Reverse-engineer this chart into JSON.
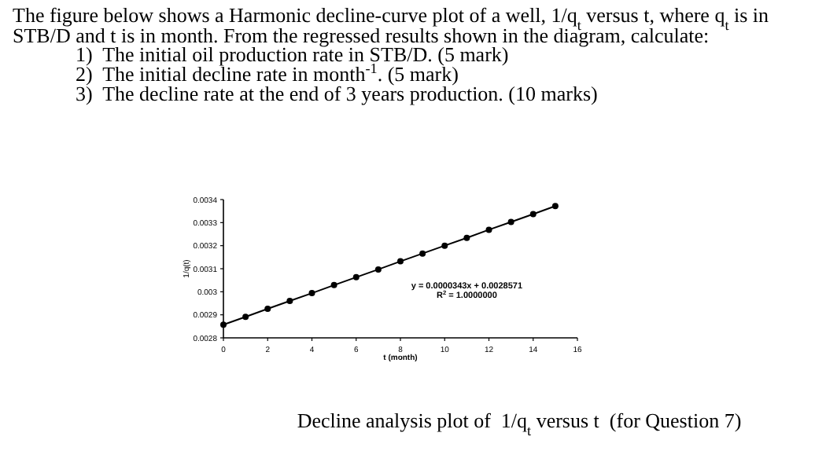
{
  "chart_data": {
    "type": "line",
    "title": "The figure below shows a Harmonic decline-curve plot of a well, 1/q$_{t}$ versus t, where q$_{t}$ is in STB/D and t is in month. From the regressed results shown in the diagram, calculate:",
    "xlabel": "t (month)",
    "ylabel": "1/q(t)",
    "annotations": [
      "1)  The initial oil production rate in STB/D. (5 mark)",
      "2)  The initial decline rate in month$^{-1}$. (5 mark)",
      "3)  The decline rate at the end of 3 years production. (10 marks)",
      "y = 0.0000343x + 0.0028571",
      "R$^{2}$ = 1.0000000",
      "Decline analysis plot of  1/q$_{t}$ versus t  (for Question 7)"
    ],
    "x": [
      0,
      1,
      2,
      3,
      4,
      5,
      6,
      7,
      8,
      9,
      10,
      11,
      12,
      13,
      14,
      15
    ],
    "series": [
      {
        "color": "#000000",
        "values": [
          0.002857,
          0.002891,
          0.002926,
          0.00296,
          0.002994,
          0.003029,
          0.003063,
          0.003097,
          0.003132,
          0.003166,
          0.0032,
          0.003234,
          0.003269,
          0.003303,
          0.003337,
          0.003372
        ]
      }
    ],
    "xlim": [
      0,
      16
    ],
    "xticks": [
      0,
      2,
      4,
      6,
      8,
      10,
      12,
      14,
      16
    ],
    "ylim": [
      0.0028,
      0.0034
    ],
    "yticks": [
      0.0028,
      0.0029,
      0.003,
      0.0031,
      0.0032,
      0.0033,
      0.0034
    ],
    "marker": "circle",
    "line_style": "solid",
    "grid": false
  }
}
